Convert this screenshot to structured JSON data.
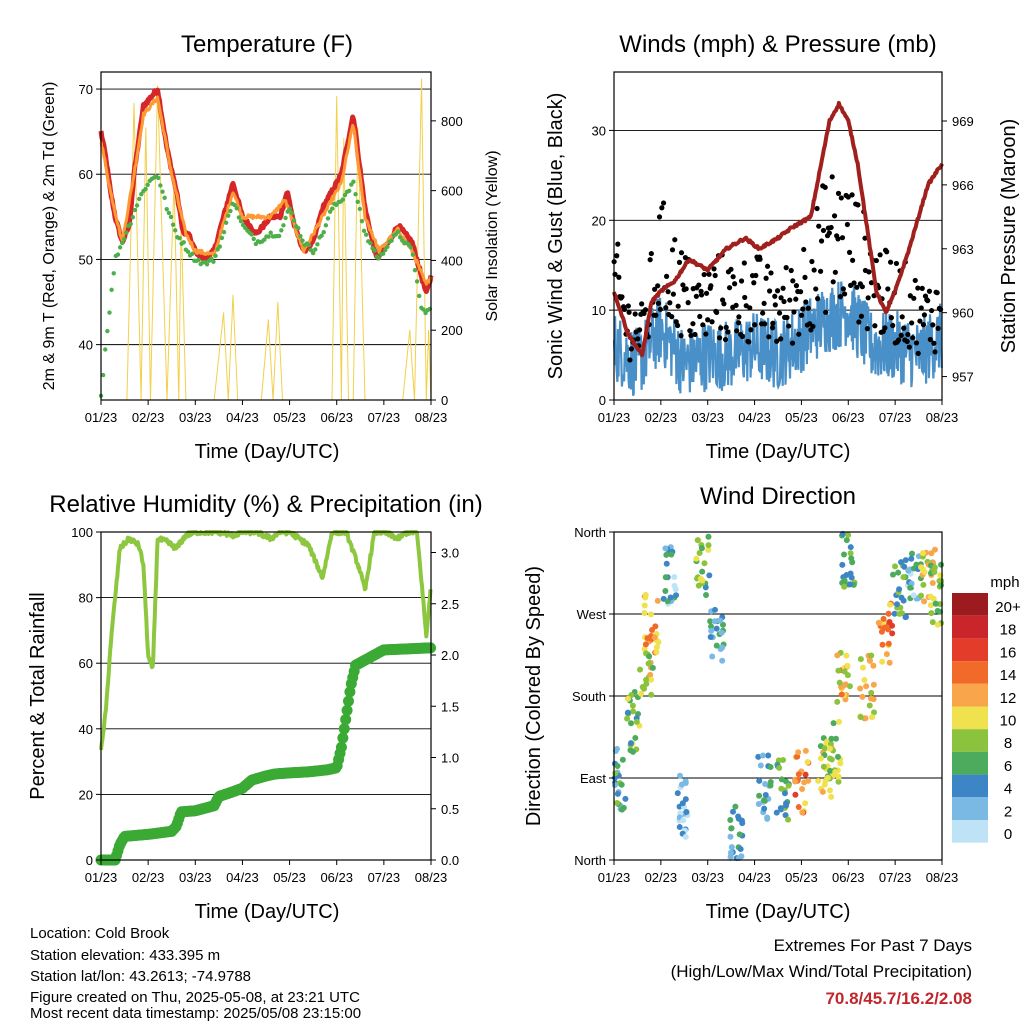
{
  "chart_data": [
    {
      "id": "temperature",
      "type": "line",
      "title": "Temperature (F)",
      "xlabel": "Time (Day/UTC)",
      "ylabel": "2m & 9m T (Red, Orange) & 2m Td (Green)",
      "y2label": "Solar Insolation (Yellow)",
      "x_ticks": [
        "01/23",
        "02/23",
        "03/23",
        "04/23",
        "05/23",
        "06/23",
        "07/23",
        "08/23"
      ],
      "ylim": [
        33.5,
        72
      ],
      "y_ticks": [
        40,
        50,
        60,
        70
      ],
      "y2lim": [
        0,
        940
      ],
      "y2_ticks": [
        0,
        200,
        400,
        600,
        800
      ],
      "grid": true,
      "series": [
        {
          "color": "#d62728",
          "axis": "left",
          "x": [
            0,
            0.1,
            0.2,
            0.3,
            0.45,
            0.6,
            0.7,
            0.9,
            1.2,
            1.4,
            1.6,
            1.75,
            1.85,
            2.0,
            2.2,
            2.4,
            2.6,
            2.8,
            3.0,
            3.3,
            3.6,
            3.8,
            3.95,
            4.1,
            4.3,
            4.5,
            4.7,
            4.9,
            5.1,
            5.35,
            5.6,
            5.85,
            5.95,
            6.1,
            6.3,
            6.6,
            6.9,
            7.0
          ],
          "y": [
            65,
            62,
            58,
            55,
            52,
            54,
            60,
            68,
            70,
            63,
            58,
            53,
            53,
            51,
            50,
            51,
            55,
            59,
            55,
            53,
            55,
            55,
            58,
            54,
            51,
            52,
            56,
            58,
            60,
            67,
            56,
            50,
            51,
            52,
            54,
            52,
            46,
            48
          ]
        },
        {
          "color": "#ff9933",
          "axis": "left",
          "x": [
            0,
            0.2,
            0.45,
            0.7,
            0.9,
            1.2,
            1.5,
            1.8,
            2.0,
            2.4,
            2.8,
            3.0,
            3.6,
            3.9,
            4.3,
            4.7,
            5.1,
            5.35,
            5.6,
            5.9,
            6.3,
            6.6,
            6.9,
            7.0
          ],
          "y": [
            64,
            58,
            52,
            60,
            67,
            69,
            60,
            53,
            51,
            50.5,
            58,
            55,
            55,
            57,
            51,
            55,
            59,
            66,
            55,
            51,
            53.5,
            51,
            47,
            48
          ]
        },
        {
          "color": "#4daf4a",
          "axis": "left",
          "x": [
            0,
            0.1,
            0.2,
            0.3,
            0.45,
            0.6,
            0.8,
            1.0,
            1.2,
            1.4,
            1.6,
            1.85,
            2.0,
            2.2,
            2.4,
            2.6,
            2.8,
            3.0,
            3.3,
            3.6,
            3.8,
            4.0,
            4.3,
            4.5,
            4.7,
            4.9,
            5.1,
            5.35,
            5.6,
            5.9,
            6.1,
            6.3,
            6.6,
            6.8,
            7.0
          ],
          "y": [
            34,
            40,
            45,
            50,
            52,
            54,
            57,
            59,
            60,
            56,
            53,
            51,
            50,
            49.5,
            50,
            53,
            57,
            54,
            52,
            53,
            53,
            56,
            52,
            51,
            53,
            56,
            57,
            59,
            53,
            50,
            52,
            53,
            51,
            44,
            44
          ]
        },
        {
          "color": "#f2d04b",
          "axis": "right",
          "x": [
            0.4,
            0.55,
            0.7,
            0.85,
            0.95,
            1.05,
            1.2,
            1.4,
            1.55,
            1.65,
            1.7,
            1.8,
            2.4,
            2.6,
            2.7,
            2.8,
            2.9,
            3.4,
            3.55,
            3.65,
            3.75,
            3.85,
            4.3,
            4.9,
            5.0,
            5.1,
            5.15,
            5.25,
            5.35,
            5.45,
            5.6,
            5.8,
            5.95,
            6.4,
            6.55,
            6.65,
            6.8,
            6.9,
            6.95,
            7.0
          ],
          "y": [
            0,
            0,
            850,
            0,
            780,
            0,
            900,
            0,
            630,
            0,
            520,
            0,
            0,
            250,
            0,
            300,
            0,
            0,
            230,
            0,
            280,
            0,
            0,
            0,
            870,
            0,
            750,
            0,
            0,
            780,
            0,
            0,
            0,
            0,
            200,
            0,
            920,
            0,
            200,
            0
          ]
        }
      ]
    },
    {
      "id": "winds",
      "type": "scatter",
      "title": "Winds (mph) & Pressure (mb)",
      "xlabel": "Time (Day/UTC)",
      "ylabel": "Sonic Wind & Gust (Blue, Black)",
      "y2label": "Station Pressure (Maroon)",
      "x_ticks": [
        "01/23",
        "02/23",
        "03/23",
        "04/23",
        "05/23",
        "06/23",
        "07/23",
        "08/23"
      ],
      "ylim": [
        0,
        36.5
      ],
      "y_ticks": [
        0,
        10,
        20,
        30
      ],
      "y2lim": [
        955.9,
        971.3
      ],
      "y2_ticks": [
        957,
        960,
        963,
        966,
        969
      ],
      "grid": true,
      "series": [
        {
          "color": "#000000",
          "kind": "gust",
          "x": [
            0,
            0.3,
            0.6,
            1,
            1.4,
            1.8,
            2.2,
            2.6,
            3,
            3.4,
            3.8,
            4.2,
            4.6,
            5,
            5.4,
            5.8,
            6.2,
            6.6,
            7
          ],
          "y": [
            16,
            10,
            9,
            19,
            15,
            12,
            14,
            13,
            14,
            12,
            13,
            17,
            22,
            21,
            17,
            14,
            13,
            11,
            12
          ]
        },
        {
          "color": "#4a90c8",
          "kind": "wind",
          "x": [
            0,
            0.5,
            1,
            1.5,
            2,
            2.5,
            3,
            3.5,
            4,
            4.5,
            5,
            5.5,
            6,
            6.5,
            7
          ],
          "y": [
            6,
            4,
            8,
            4,
            5,
            5,
            6,
            5,
            7,
            9,
            10,
            6,
            6,
            5,
            7
          ]
        },
        {
          "color": "#a0201e",
          "kind": "pressure",
          "axis": "right",
          "x": [
            0,
            0.3,
            0.6,
            0.8,
            1.0,
            1.3,
            1.6,
            2.0,
            2.4,
            2.8,
            3.1,
            3.5,
            3.8,
            4.2,
            4.6,
            4.8,
            5.0,
            5.2,
            5.6,
            5.8,
            6.0,
            6.3,
            6.7,
            7.0
          ],
          "y": [
            961,
            959,
            958,
            960.5,
            961,
            961.5,
            962.5,
            962,
            963,
            963.5,
            963,
            963.5,
            964,
            964.5,
            969,
            969.8,
            969,
            967,
            961,
            960,
            961,
            963,
            966,
            967
          ]
        }
      ]
    },
    {
      "id": "humidity",
      "type": "line",
      "title": "Relative Humidity (%) & Precipitation (in)",
      "xlabel": "Time (Day/UTC)",
      "ylabel": "Percent & Total Rainfall",
      "x_ticks": [
        "01/23",
        "02/23",
        "03/23",
        "04/23",
        "05/23",
        "06/23",
        "07/23",
        "08/23"
      ],
      "ylim": [
        0,
        100
      ],
      "y_ticks": [
        0,
        20,
        40,
        60,
        80,
        100
      ],
      "y2lim": [
        0,
        3.2
      ],
      "y2_ticks": [
        "0.0",
        "0.5",
        "1.0",
        "1.5",
        "2.0",
        "2.5",
        "3.0"
      ],
      "grid": true,
      "series": [
        {
          "color": "#8dc63f",
          "kind": "rh",
          "x": [
            0,
            0.1,
            0.2,
            0.3,
            0.4,
            0.6,
            0.8,
            0.9,
            1.0,
            1.1,
            1.2,
            1.4,
            1.6,
            1.8,
            2.0,
            2.2,
            2.5,
            2.8,
            3.0,
            3.3,
            3.6,
            3.8,
            4.0,
            4.4,
            4.7,
            4.9,
            5.2,
            5.5,
            5.6,
            5.8,
            6.0,
            6.3,
            6.5,
            6.7,
            6.8,
            6.9,
            7.0
          ],
          "y": [
            33,
            45,
            65,
            80,
            95,
            98,
            96,
            90,
            62,
            58,
            98,
            97,
            95,
            99,
            100,
            100,
            100,
            99,
            100,
            100,
            98,
            100,
            100,
            96,
            86,
            100,
            100,
            88,
            82,
            100,
            100,
            98,
            100,
            100,
            85,
            68,
            84
          ]
        },
        {
          "color": "#3aaa35",
          "kind": "precip",
          "axis": "right",
          "x": [
            0,
            0.3,
            0.4,
            0.5,
            1.0,
            1.5,
            1.6,
            1.7,
            2.0,
            2.4,
            2.5,
            2.7,
            3.0,
            3.2,
            3.5,
            3.7,
            4.0,
            4.4,
            4.8,
            5.0,
            5.1,
            5.2,
            5.3,
            5.4,
            5.6,
            5.8,
            6.0,
            6.5,
            7.0
          ],
          "y": [
            0,
            0,
            0.15,
            0.23,
            0.25,
            0.28,
            0.33,
            0.47,
            0.48,
            0.53,
            0.62,
            0.65,
            0.7,
            0.78,
            0.82,
            0.84,
            0.85,
            0.86,
            0.88,
            0.9,
            1.1,
            1.4,
            1.7,
            1.9,
            1.95,
            2.0,
            2.05,
            2.06,
            2.07
          ]
        }
      ]
    },
    {
      "id": "wind_direction",
      "type": "scatter",
      "title": "Wind Direction",
      "xlabel": "Time (Day/UTC)",
      "ylabel": "Direction (Colored By Speed)",
      "x_ticks": [
        "01/23",
        "02/23",
        "03/23",
        "04/23",
        "05/23",
        "06/23",
        "07/23",
        "08/23"
      ],
      "y_ticks": [
        "North",
        "East",
        "South",
        "West",
        "North"
      ],
      "ylim": [
        0,
        360
      ],
      "grid": true,
      "legend_title": "mph",
      "legend_labels": [
        "20+",
        "18",
        "16",
        "14",
        "12",
        "10",
        "8",
        "6",
        "4",
        "2",
        "0"
      ],
      "legend_colors": [
        "#9b1b1e",
        "#c9252b",
        "#e33c2b",
        "#f26a2a",
        "#f8a54b",
        "#f0e14f",
        "#8bc33f",
        "#4cab5c",
        "#3d86c6",
        "#7ab9e4",
        "#bfe3f6"
      ],
      "clusters": [
        {
          "x": 0.1,
          "dir": 90,
          "speed": 5
        },
        {
          "x": 0.4,
          "dir": 150,
          "speed": 7
        },
        {
          "x": 0.7,
          "dir": 210,
          "speed": 9
        },
        {
          "x": 0.8,
          "dir": 260,
          "speed": 12
        },
        {
          "x": 1.2,
          "dir": 310,
          "speed": 3
        },
        {
          "x": 1.5,
          "dir": 60,
          "speed": 2
        },
        {
          "x": 1.9,
          "dir": 320,
          "speed": 7
        },
        {
          "x": 2.2,
          "dir": 250,
          "speed": 4
        },
        {
          "x": 2.6,
          "dir": 30,
          "speed": 3
        },
        {
          "x": 3.2,
          "dir": 80,
          "speed": 4
        },
        {
          "x": 3.6,
          "dir": 75,
          "speed": 6
        },
        {
          "x": 4.0,
          "dir": 85,
          "speed": 13
        },
        {
          "x": 4.5,
          "dir": 100,
          "speed": 9
        },
        {
          "x": 4.7,
          "dir": 120,
          "speed": 8
        },
        {
          "x": 4.9,
          "dir": 200,
          "speed": 11
        },
        {
          "x": 5.0,
          "dir": 330,
          "speed": 6
        },
        {
          "x": 5.4,
          "dir": 190,
          "speed": 10
        },
        {
          "x": 5.8,
          "dir": 250,
          "speed": 13
        },
        {
          "x": 6.1,
          "dir": 300,
          "speed": 6
        },
        {
          "x": 6.4,
          "dir": 320,
          "speed": 3
        },
        {
          "x": 6.7,
          "dir": 310,
          "speed": 10
        },
        {
          "x": 6.9,
          "dir": 290,
          "speed": 8
        }
      ]
    }
  ],
  "info": {
    "location": "Location: Cold Brook",
    "elevation": "Station elevation: 433.395 m",
    "latlon": "Station lat/lon: 43.2613; -74.9788",
    "created": "Figure created on Thu, 2025-05-08, at 23:21 UTC",
    "recent": "Most recent data timestamp: 2025/05/08 23:15:00"
  },
  "extremes": {
    "title": "Extremes For Past 7 Days",
    "subtitle": "(High/Low/Max Wind/Total Precipitation)",
    "values": "70.8/45.7/16.2/2.08"
  }
}
